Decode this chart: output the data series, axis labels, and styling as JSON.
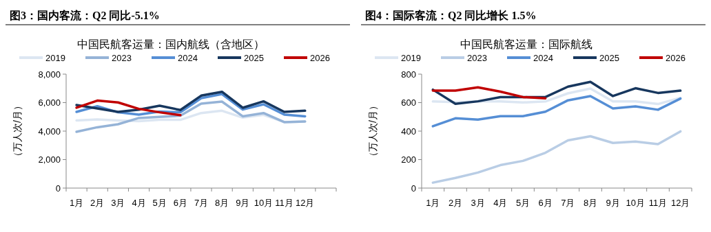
{
  "chart_data": [
    {
      "type": "line",
      "title": "图3：国内客流：Q2 同比-5.1%",
      "subtitle": "中国民航客运量：国内航线（含地区）",
      "ylabel": "（万人次/月）",
      "categories": [
        "1月",
        "2月",
        "3月",
        "4月",
        "5月",
        "6月",
        "7月",
        "8月",
        "9月",
        "10月",
        "11月",
        "12月",
        null
      ],
      "ylim": [
        0,
        8000
      ],
      "yticks": [
        {
          "value": 0,
          "label": "0"
        },
        {
          "value": 2000,
          "label": "2,000"
        },
        {
          "value": 4000,
          "label": "4,000"
        },
        {
          "value": 6000,
          "label": "6,000"
        },
        {
          "value": 8000,
          "label": "8,000"
        }
      ],
      "legend": "top",
      "grid": false,
      "series": [
        {
          "name": "2019",
          "color": "#dce6f2",
          "values": [
            4750,
            4820,
            4750,
            4700,
            4790,
            4790,
            5270,
            5430,
            4950,
            5140,
            4630,
            4680,
            null
          ]
        },
        {
          "name": "2023",
          "color": "#95b3d7",
          "values": [
            3950,
            4270,
            4480,
            4920,
            5000,
            5080,
            5930,
            6070,
            5040,
            5270,
            4630,
            4680,
            null
          ]
        },
        {
          "name": "2024",
          "color": "#558ed5",
          "values": [
            5350,
            5750,
            5320,
            5160,
            5370,
            5320,
            6310,
            6600,
            5510,
            5880,
            5160,
            5040,
            null
          ]
        },
        {
          "name": "2025",
          "color": "#17375e",
          "values": [
            5830,
            5590,
            5350,
            5510,
            5780,
            5480,
            6490,
            6760,
            5640,
            6090,
            5350,
            5430,
            null
          ]
        },
        {
          "name": "2026",
          "color": "#c00000",
          "values": [
            5640,
            6140,
            6010,
            5560,
            5320,
            5120,
            null,
            null,
            null,
            null,
            null,
            null,
            null
          ]
        }
      ]
    },
    {
      "type": "line",
      "title": "图4：国际客流：Q2 同比增长 1.5%",
      "subtitle": "中国民航客运量：国际航线",
      "ylabel": "（万人次/月）",
      "categories": [
        "1月",
        "2月",
        "3月",
        "4月",
        "5月",
        "6月",
        "7月",
        "8月",
        "9月",
        "10月",
        "11月",
        "12月"
      ],
      "ylim": [
        0,
        800
      ],
      "yticks": [
        0,
        200,
        400,
        600,
        800
      ],
      "legend": "top",
      "grid": false,
      "series": [
        {
          "name": "2019",
          "color": "#dce6f2",
          "values": [
            608,
            604,
            608,
            608,
            601,
            608,
            665,
            699,
            608,
            608,
            590,
            634
          ]
        },
        {
          "name": "2023",
          "color": "#b9cde5",
          "values": [
            38,
            71,
            109,
            161,
            191,
            248,
            335,
            364,
            317,
            326,
            308,
            398
          ]
        },
        {
          "name": "2024",
          "color": "#558ed5",
          "values": [
            434,
            490,
            481,
            505,
            505,
            536,
            616,
            646,
            559,
            573,
            550,
            628
          ]
        },
        {
          "name": "2025",
          "color": "#17375e",
          "values": [
            691,
            592,
            609,
            639,
            639,
            639,
            712,
            746,
            646,
            701,
            668,
            684
          ]
        },
        {
          "name": "2026",
          "color": "#c00000",
          "values": [
            684,
            684,
            707,
            677,
            639,
            630,
            null,
            null,
            null,
            null,
            null,
            null
          ]
        }
      ]
    }
  ]
}
